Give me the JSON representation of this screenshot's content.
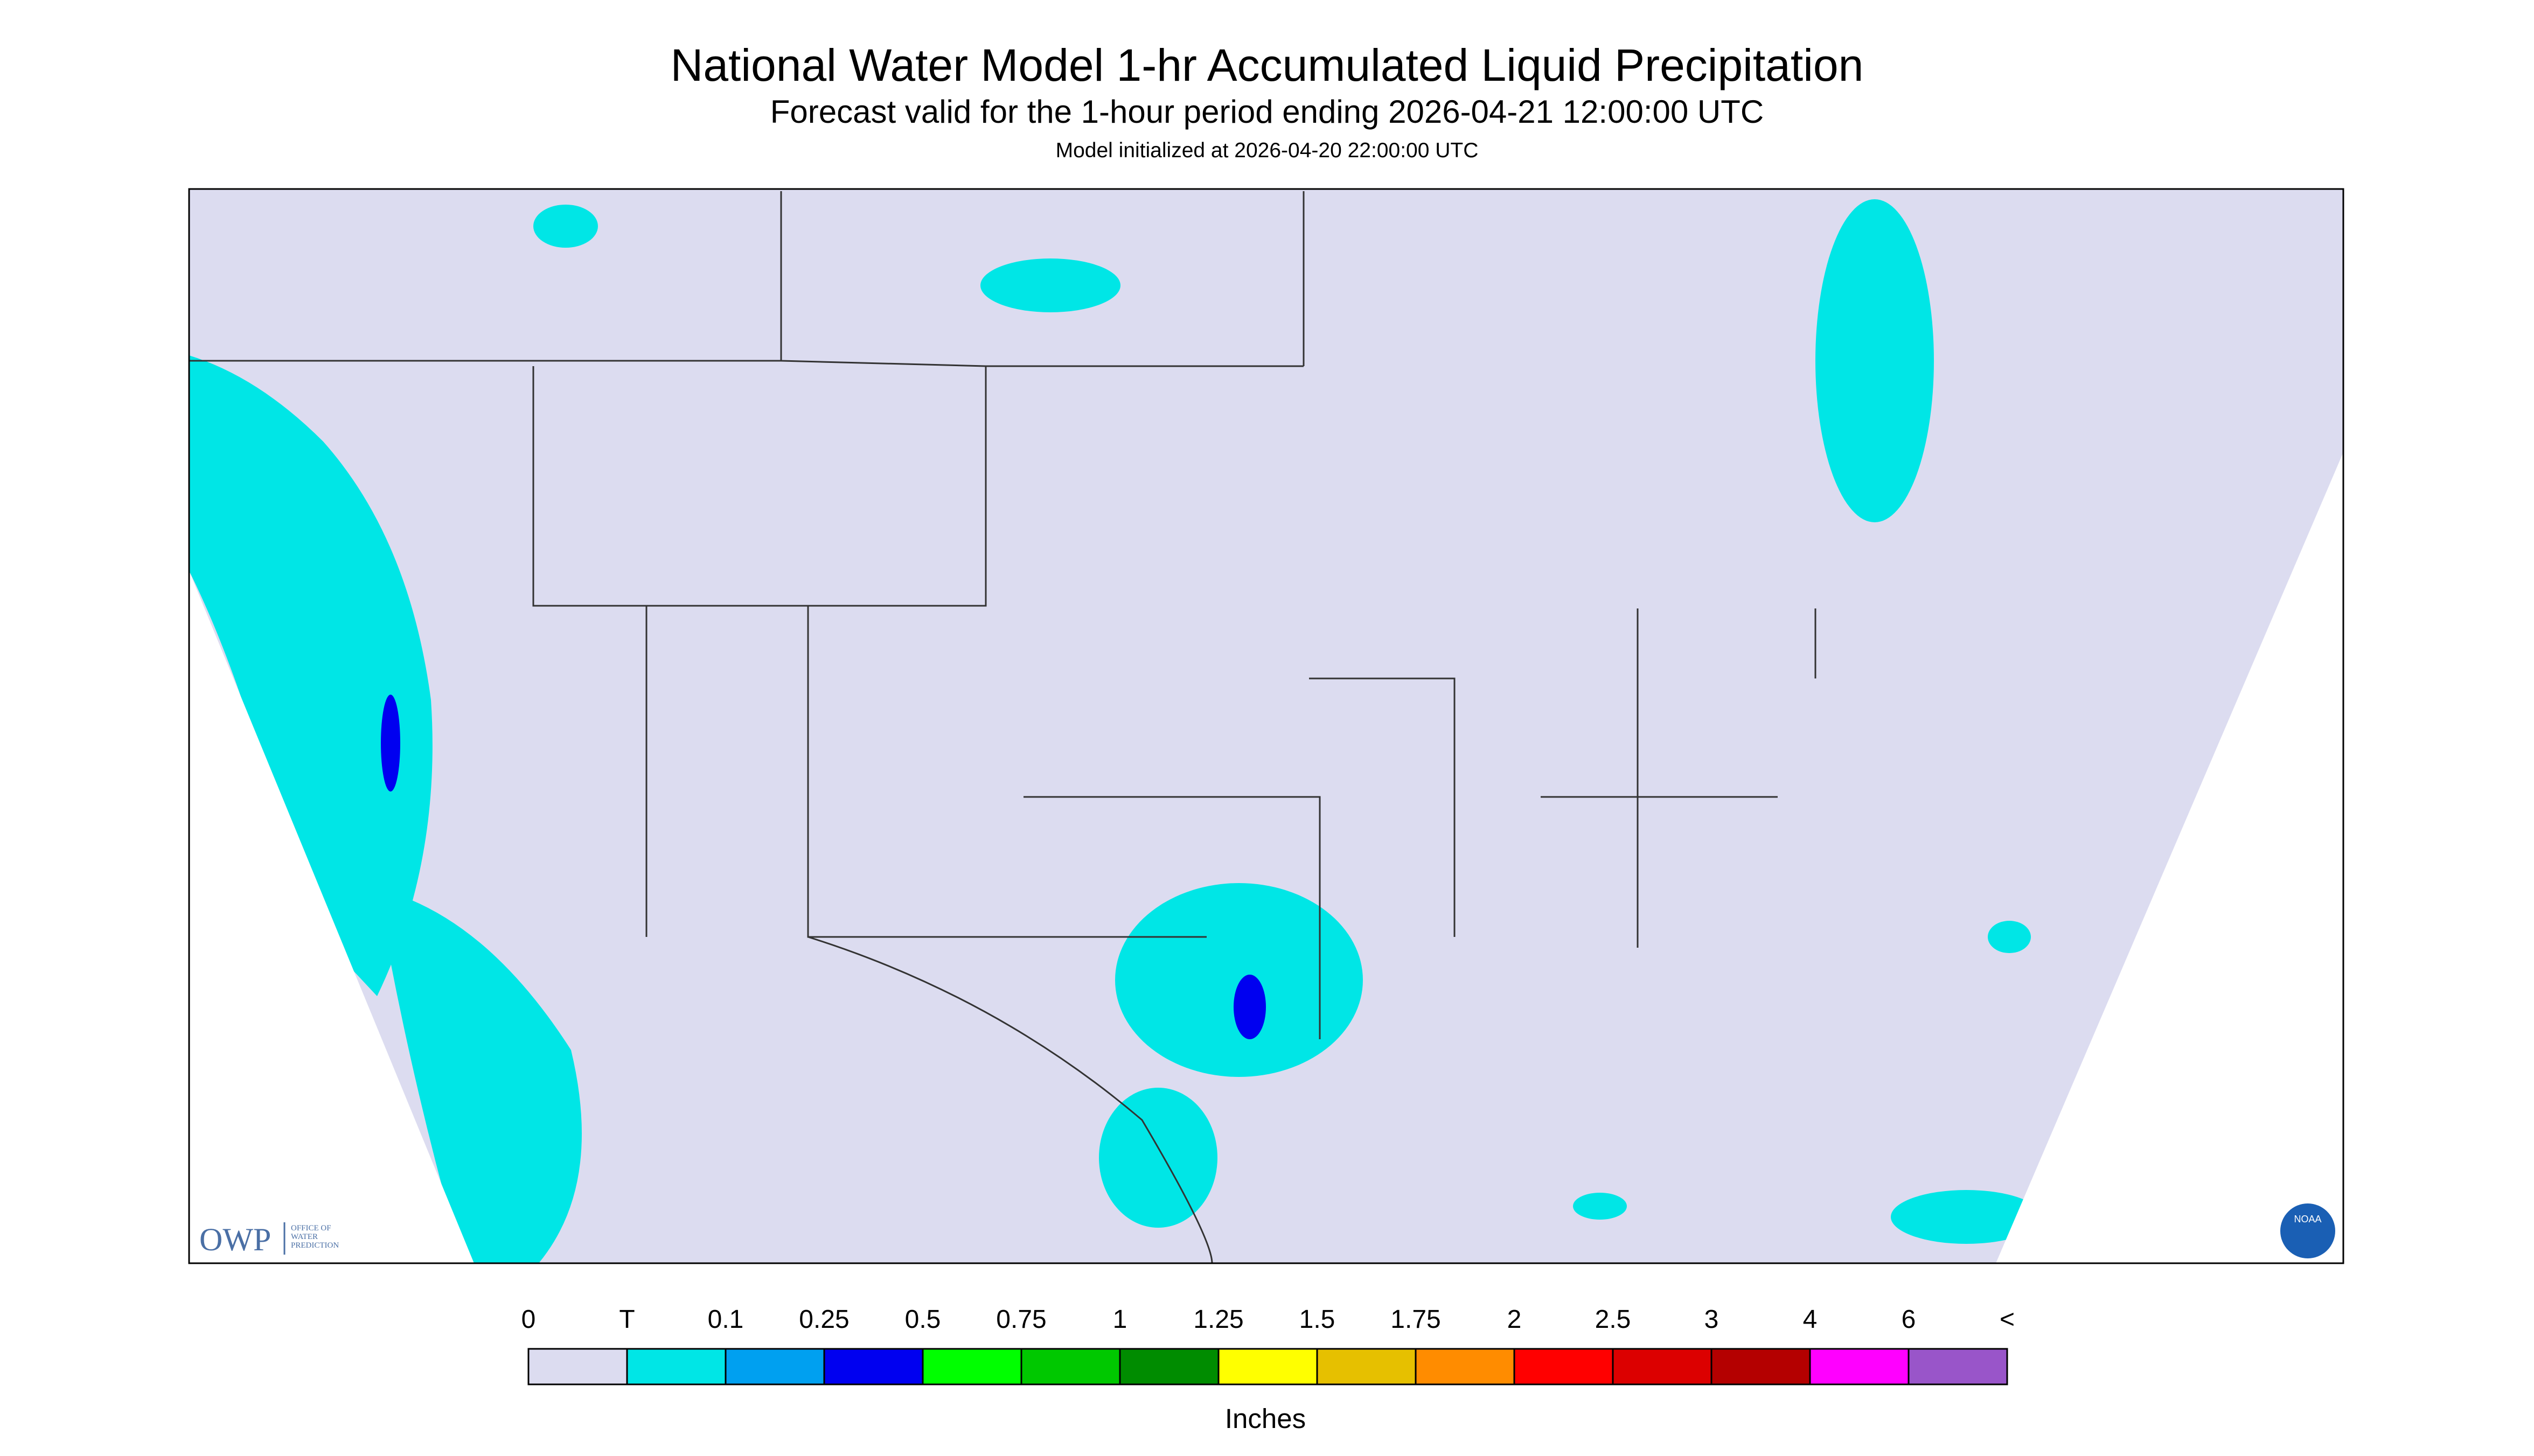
{
  "header": {
    "title": "National Water Model 1-hr Accumulated Liquid Precipitation",
    "subtitle": "Forecast valid for the 1-hour period ending 2026-04-21 12:00:00 UTC",
    "initialized": "Model initialized at 2026-04-20 22:00:00 UTC"
  },
  "legend": {
    "labels": [
      "0",
      "T",
      "0.1",
      "0.25",
      "0.5",
      "0.75",
      "1",
      "1.25",
      "1.5",
      "1.75",
      "2",
      "2.5",
      "3",
      "4",
      "6",
      "<"
    ],
    "colors": [
      "#dcdcf0",
      "#00e6e6",
      "#00a0f0",
      "#0000f0",
      "#00ff00",
      "#00c800",
      "#008c00",
      "#ffff00",
      "#e6c000",
      "#ff8c00",
      "#ff0000",
      "#dc0000",
      "#b40000",
      "#ff00ff",
      "#9955c9"
    ],
    "unit": "Inches"
  },
  "logos": {
    "owp": "OWP",
    "owp_name": [
      "OFFICE OF",
      "WATER",
      "PREDICTION"
    ],
    "noaa": "NOAA"
  }
}
